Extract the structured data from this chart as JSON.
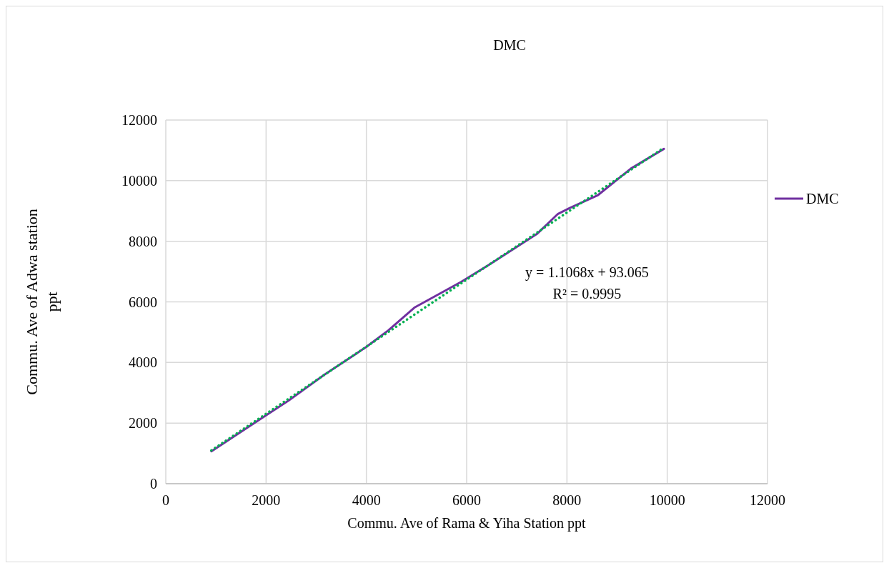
{
  "chart_data": {
    "type": "line",
    "title": "DMC",
    "xlabel": "Commu. Ave of Rama & Yiha Station ppt",
    "ylabel": "Commu. Ave of Adwa station ppt",
    "x": [
      909,
      2000,
      2441,
      3157,
      3766,
      4000,
      4443,
      4958,
      5897,
      6460,
      7399,
      7822,
      8056,
      8620,
      9277,
      9934
    ],
    "series": [
      {
        "name": "DMC",
        "color": "#7030a0",
        "values": [
          1067,
          2257,
          2733,
          3590,
          4257,
          4514,
          5067,
          5810,
          6667,
          7238,
          8238,
          8905,
          9095,
          9524,
          10400,
          11048
        ]
      },
      {
        "type": "line",
        "color": "#00b050",
        "line_style": "dotted",
        "x": [
          909,
          9934
        ],
        "values": [
          1099,
          11088
        ]
      }
    ],
    "annotations": [
      "y = 1.1068x + 93.065",
      "R² = 0.9995"
    ],
    "xlim": [
      0,
      12000
    ],
    "xticks": [
      0,
      2000,
      4000,
      6000,
      8000,
      10000,
      12000
    ],
    "ylim": [
      0,
      12000
    ],
    "yticks": [
      0,
      2000,
      4000,
      6000,
      8000,
      10000,
      12000
    ],
    "grid": true,
    "legend": "right",
    "marker": "none",
    "line_style": "solid"
  }
}
